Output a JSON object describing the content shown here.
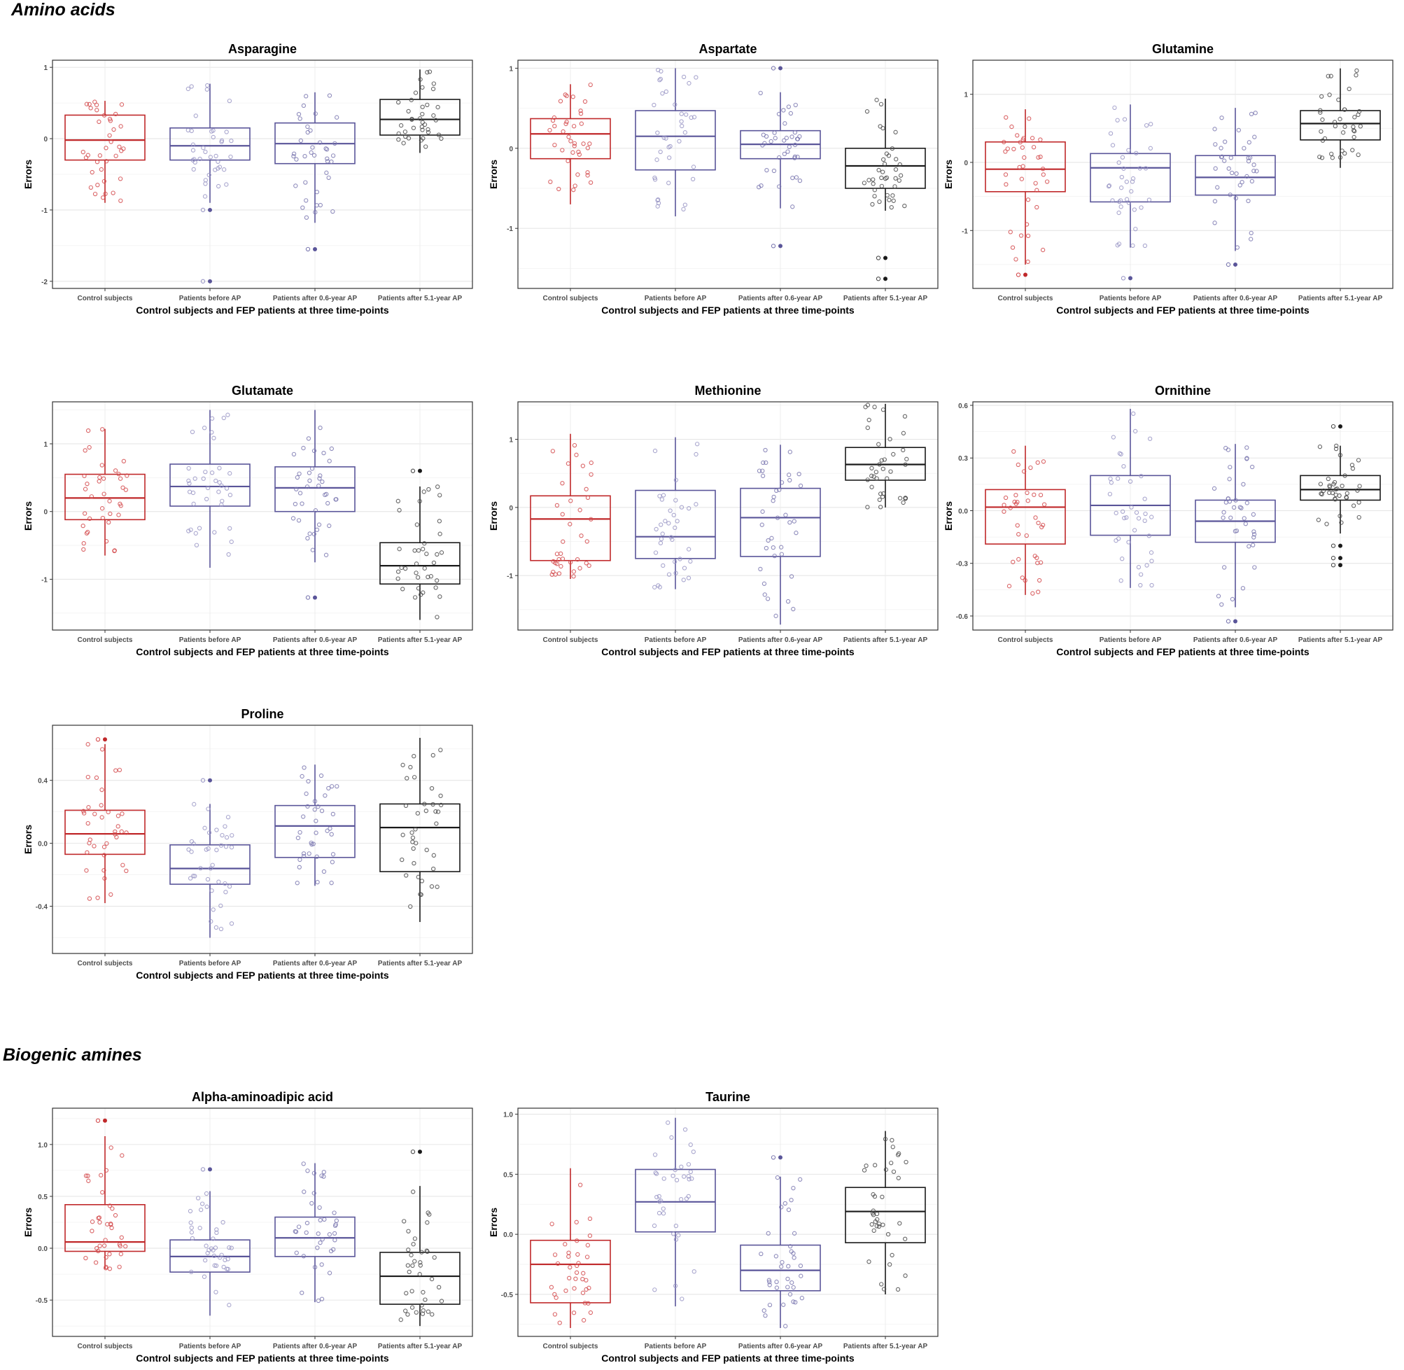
{
  "sections": {
    "amino": "Amino acids",
    "biogenic": "Biogenic amines"
  },
  "shared": {
    "xlabel": "Control subjects and FEP patients at three time-points",
    "ylabel": "Errors",
    "categories": [
      "Control subjects",
      "Patients before AP",
      "Patients after 0.6-year AP",
      "Patients after 5.1-year AP"
    ],
    "group_colors": [
      "#c0282a",
      "#5a5599",
      "#5a5599",
      "#1a1a1a"
    ],
    "point_colors": [
      "#d44a4c",
      "#9a97c6",
      "#7b78b0",
      "#4a4a4a"
    ]
  },
  "chart_data": [
    {
      "id": "asparagine",
      "type": "box",
      "title": "Asparagine",
      "xlabel": "Control subjects and FEP patients at three time-points",
      "ylabel": "Errors",
      "ylim": [
        -2.1,
        1.1
      ],
      "yticks": [
        -2,
        -1,
        0,
        1
      ],
      "ytick_labels": [
        "-2",
        "-1",
        "0",
        "1"
      ],
      "boxes": [
        {
          "q1": -0.3,
          "median": -0.02,
          "q3": 0.33,
          "lo": -0.9,
          "hi": 0.53,
          "outliers": []
        },
        {
          "q1": -0.3,
          "median": -0.1,
          "q3": 0.15,
          "lo": -0.9,
          "hi": 0.77,
          "outliers": [
            -1.0,
            -2.0
          ]
        },
        {
          "q1": -0.35,
          "median": -0.07,
          "q3": 0.22,
          "lo": -1.18,
          "hi": 0.65,
          "outliers": [
            -1.55
          ]
        },
        {
          "q1": 0.05,
          "median": 0.27,
          "q3": 0.55,
          "lo": -0.2,
          "hi": 0.97,
          "outliers": []
        }
      ]
    },
    {
      "id": "aspartate",
      "type": "box",
      "title": "Aspartate",
      "xlabel": "Control subjects and FEP patients at three time-points",
      "ylabel": "Errors",
      "ylim": [
        -1.75,
        1.1
      ],
      "yticks": [
        -1,
        0,
        1
      ],
      "ytick_labels": [
        "-1",
        "0",
        "1"
      ],
      "boxes": [
        {
          "q1": -0.13,
          "median": 0.18,
          "q3": 0.37,
          "lo": -0.7,
          "hi": 0.8,
          "outliers": []
        },
        {
          "q1": -0.27,
          "median": 0.15,
          "q3": 0.47,
          "lo": -0.85,
          "hi": 1.0,
          "outliers": []
        },
        {
          "q1": -0.13,
          "median": 0.05,
          "q3": 0.22,
          "lo": -0.75,
          "hi": 0.7,
          "outliers": [
            1.0,
            -1.22
          ]
        },
        {
          "q1": -0.5,
          "median": -0.22,
          "q3": 0.0,
          "lo": -0.78,
          "hi": 0.62,
          "outliers": [
            -1.37,
            -1.63
          ]
        }
      ]
    },
    {
      "id": "glutamine",
      "type": "box",
      "title": "Glutamine",
      "xlabel": "Control subjects and FEP patients at three time-points",
      "ylabel": "Errors",
      "ylim": [
        -1.85,
        1.5
      ],
      "yticks": [
        -1,
        0,
        1
      ],
      "ytick_labels": [
        "-1",
        "0",
        "1"
      ],
      "boxes": [
        {
          "q1": -0.43,
          "median": -0.1,
          "q3": 0.3,
          "lo": -1.5,
          "hi": 0.78,
          "outliers": [
            -1.65
          ]
        },
        {
          "q1": -0.58,
          "median": -0.08,
          "q3": 0.13,
          "lo": -1.25,
          "hi": 0.85,
          "outliers": [
            -1.7
          ]
        },
        {
          "q1": -0.48,
          "median": -0.22,
          "q3": 0.1,
          "lo": -1.3,
          "hi": 0.8,
          "outliers": [
            -1.5
          ]
        },
        {
          "q1": 0.33,
          "median": 0.57,
          "q3": 0.76,
          "lo": -0.08,
          "hi": 1.38,
          "outliers": []
        }
      ]
    },
    {
      "id": "glutamate",
      "type": "box",
      "title": "Glutamate",
      "xlabel": "Control subjects and FEP patients at three time-points",
      "ylabel": "Errors",
      "ylim": [
        -1.75,
        1.62
      ],
      "yticks": [
        -1,
        0,
        1
      ],
      "ytick_labels": [
        "-1",
        "0",
        "1"
      ],
      "boxes": [
        {
          "q1": -0.12,
          "median": 0.2,
          "q3": 0.55,
          "lo": -0.65,
          "hi": 1.22,
          "outliers": []
        },
        {
          "q1": 0.08,
          "median": 0.37,
          "q3": 0.7,
          "lo": -0.83,
          "hi": 1.5,
          "outliers": []
        },
        {
          "q1": 0.0,
          "median": 0.35,
          "q3": 0.66,
          "lo": -0.75,
          "hi": 1.5,
          "outliers": [
            -1.27
          ]
        },
        {
          "q1": -1.07,
          "median": -0.8,
          "q3": -0.46,
          "lo": -1.6,
          "hi": 0.37,
          "outliers": [
            0.6
          ]
        }
      ]
    },
    {
      "id": "methionine",
      "type": "box",
      "title": "Methionine",
      "xlabel": "Control subjects and FEP patients at three time-points",
      "ylabel": "Errors",
      "ylim": [
        -1.8,
        1.55
      ],
      "yticks": [
        -1,
        0,
        1
      ],
      "ytick_labels": [
        "-1",
        "0",
        "1"
      ],
      "boxes": [
        {
          "q1": -0.78,
          "median": -0.17,
          "q3": 0.17,
          "lo": -1.05,
          "hi": 1.08,
          "outliers": []
        },
        {
          "q1": -0.75,
          "median": -0.43,
          "q3": 0.25,
          "lo": -1.2,
          "hi": 1.03,
          "outliers": []
        },
        {
          "q1": -0.72,
          "median": -0.15,
          "q3": 0.28,
          "lo": -1.72,
          "hi": 0.92,
          "outliers": []
        },
        {
          "q1": 0.4,
          "median": 0.63,
          "q3": 0.88,
          "lo": 0.0,
          "hi": 1.52,
          "outliers": []
        }
      ]
    },
    {
      "id": "ornithine",
      "type": "box",
      "title": "Ornithine",
      "xlabel": "Control subjects and FEP patients at three time-points",
      "ylabel": "Errors",
      "ylim": [
        -0.68,
        0.62
      ],
      "yticks": [
        -0.6,
        -0.3,
        0.0,
        0.3,
        0.6
      ],
      "ytick_labels": [
        "-0.6",
        "-0.3",
        "0.0",
        "0.3",
        "0.6"
      ],
      "boxes": [
        {
          "q1": -0.19,
          "median": 0.02,
          "q3": 0.12,
          "lo": -0.48,
          "hi": 0.37,
          "outliers": []
        },
        {
          "q1": -0.14,
          "median": 0.03,
          "q3": 0.2,
          "lo": -0.44,
          "hi": 0.58,
          "outliers": []
        },
        {
          "q1": -0.18,
          "median": -0.06,
          "q3": 0.06,
          "lo": -0.55,
          "hi": 0.38,
          "outliers": [
            -0.63
          ]
        },
        {
          "q1": 0.06,
          "median": 0.12,
          "q3": 0.2,
          "lo": -0.13,
          "hi": 0.37,
          "outliers": [
            0.48,
            -0.2,
            -0.27,
            -0.31
          ]
        }
      ]
    },
    {
      "id": "proline",
      "type": "box",
      "title": "Proline",
      "xlabel": "Control subjects and FEP patients at three time-points",
      "ylabel": "Errors",
      "ylim": [
        -0.7,
        0.75
      ],
      "yticks": [
        -0.4,
        0.0,
        0.4
      ],
      "ytick_labels": [
        "-0.4",
        "0.0",
        "0.4"
      ],
      "boxes": [
        {
          "q1": -0.07,
          "median": 0.06,
          "q3": 0.21,
          "lo": -0.38,
          "hi": 0.63,
          "outliers": [
            0.66
          ]
        },
        {
          "q1": -0.26,
          "median": -0.16,
          "q3": -0.01,
          "lo": -0.6,
          "hi": 0.25,
          "outliers": [
            0.4
          ]
        },
        {
          "q1": -0.09,
          "median": 0.11,
          "q3": 0.24,
          "lo": -0.27,
          "hi": 0.5,
          "outliers": []
        },
        {
          "q1": -0.18,
          "median": 0.1,
          "q3": 0.25,
          "lo": -0.5,
          "hi": 0.67,
          "outliers": []
        }
      ]
    },
    {
      "id": "alpha-aminoadipic-acid",
      "type": "box",
      "title": "Alpha-aminoadipic acid",
      "xlabel": "Control subjects and FEP patients at three time-points",
      "ylabel": "Errors",
      "ylim": [
        -0.85,
        1.35
      ],
      "yticks": [
        -0.5,
        0.0,
        0.5,
        1.0
      ],
      "ytick_labels": [
        "-0.5",
        "0.0",
        "0.5",
        "1.0"
      ],
      "boxes": [
        {
          "q1": -0.03,
          "median": 0.06,
          "q3": 0.42,
          "lo": -0.2,
          "hi": 1.08,
          "outliers": [
            1.23
          ]
        },
        {
          "q1": -0.23,
          "median": -0.08,
          "q3": 0.08,
          "lo": -0.65,
          "hi": 0.55,
          "outliers": [
            0.76
          ]
        },
        {
          "q1": -0.08,
          "median": 0.1,
          "q3": 0.3,
          "lo": -0.52,
          "hi": 0.82,
          "outliers": []
        },
        {
          "q1": -0.54,
          "median": -0.27,
          "q3": -0.04,
          "lo": -0.75,
          "hi": 0.6,
          "outliers": [
            0.93
          ]
        }
      ]
    },
    {
      "id": "taurine",
      "type": "box",
      "title": "Taurine",
      "xlabel": "Control subjects and FEP patients at three time-points",
      "ylabel": "Errors",
      "ylim": [
        -0.85,
        1.05
      ],
      "yticks": [
        -0.5,
        0.0,
        0.5,
        1.0
      ],
      "ytick_labels": [
        "-0.5",
        "0.0",
        "0.5",
        "1.0"
      ],
      "boxes": [
        {
          "q1": -0.57,
          "median": -0.25,
          "q3": -0.05,
          "lo": -0.78,
          "hi": 0.55,
          "outliers": []
        },
        {
          "q1": 0.02,
          "median": 0.27,
          "q3": 0.54,
          "lo": -0.6,
          "hi": 0.97,
          "outliers": []
        },
        {
          "q1": -0.47,
          "median": -0.3,
          "q3": -0.09,
          "lo": -0.78,
          "hi": 0.48,
          "outliers": [
            0.64
          ]
        },
        {
          "q1": -0.07,
          "median": 0.19,
          "q3": 0.39,
          "lo": -0.5,
          "hi": 0.86,
          "outliers": []
        }
      ]
    }
  ]
}
